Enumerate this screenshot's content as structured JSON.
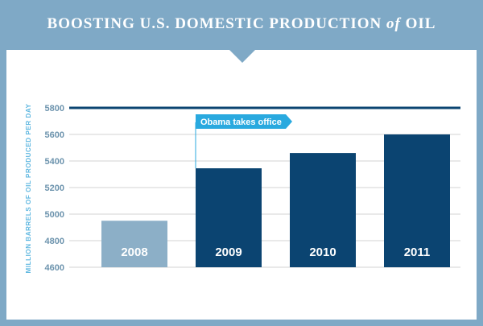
{
  "header": {
    "title_pre": "BOOSTING U.S. DOMESTIC PRODUCTION",
    "title_join": "of",
    "title_post": "OIL"
  },
  "chart_data": {
    "type": "bar",
    "categories": [
      "2008",
      "2009",
      "2010",
      "2011"
    ],
    "values": [
      4950,
      5345,
      5460,
      5600
    ],
    "ylabel": "MILLION BARRELS OF OIL PRODUCED PER DAY",
    "yticks": [
      4600,
      4800,
      5000,
      5200,
      5400,
      5600,
      5800
    ],
    "ylim": [
      4600,
      5800
    ],
    "annotation": "Obama takes office",
    "annotation_from": "2009",
    "grid": true,
    "colors": {
      "highlight": "#0b4471",
      "muted": "#8cafc7",
      "annotation": "#29a9df",
      "axis_text": "#6c93ad",
      "ylabel": "#5fb7e0"
    }
  }
}
